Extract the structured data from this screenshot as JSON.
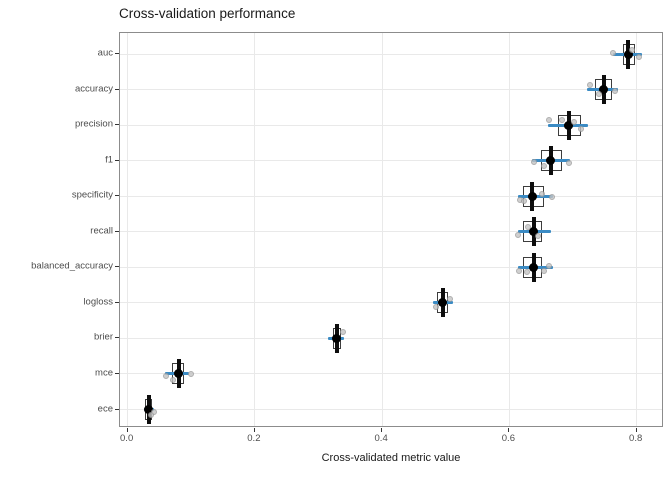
{
  "title": "Cross-validation performance",
  "x_axis_title": "Cross-validated metric value",
  "chart_data": {
    "type": "boxplot",
    "orientation": "horizontal",
    "title": "Cross-validation performance",
    "xlabel": "Cross-validated metric value",
    "ylabel": "",
    "xlim": [
      -0.012,
      0.843
    ],
    "x_ticks": [
      0.0,
      0.2,
      0.4,
      0.6,
      0.8
    ],
    "x_tick_labels": [
      "0.0",
      "0.2",
      "0.4",
      "0.6",
      "0.8"
    ],
    "grid": "major-only",
    "legend": "none",
    "categories": [
      "auc",
      "accuracy",
      "precision",
      "f1",
      "specificity",
      "recall",
      "balanced_accuracy",
      "logloss",
      "brier",
      "mce",
      "ece"
    ],
    "colors": {
      "interval": "#3b8bc4",
      "box_border": "#3d3d3d",
      "box_fill": "#ffffff",
      "median": "#0d0d0d",
      "mean_point": "#000000",
      "fold_point": "#c4c4c4",
      "gridline": "#e9e9e9",
      "panel_border": "#8c8c8c",
      "tick_label": "#4d4d4d"
    },
    "metrics": [
      {
        "name": "auc",
        "box_low": 0.779,
        "box_high": 0.798,
        "median": 0.787,
        "mean": 0.787,
        "interval_low": 0.763,
        "interval_high": 0.809,
        "points": [
          {
            "x": 0.763,
            "dy": -1
          },
          {
            "x": 0.803,
            "dy": 3
          },
          {
            "x": 0.793,
            "dy": -4
          }
        ]
      },
      {
        "name": "accuracy",
        "box_low": 0.735,
        "box_high": 0.762,
        "median": 0.748,
        "mean": 0.748,
        "interval_low": 0.722,
        "interval_high": 0.77,
        "points": [
          {
            "x": 0.727,
            "dy": -5
          },
          {
            "x": 0.766,
            "dy": 1
          },
          {
            "x": 0.741,
            "dy": 4
          }
        ]
      },
      {
        "name": "precision",
        "box_low": 0.677,
        "box_high": 0.712,
        "median": 0.693,
        "mean": 0.693,
        "interval_low": 0.66,
        "interval_high": 0.724,
        "points": [
          {
            "x": 0.663,
            "dy": -5
          },
          {
            "x": 0.702,
            "dy": -3
          },
          {
            "x": 0.712,
            "dy": 4
          },
          {
            "x": 0.683,
            "dy": -5
          }
        ]
      },
      {
        "name": "f1",
        "box_low": 0.649,
        "box_high": 0.683,
        "median": 0.665,
        "mean": 0.665,
        "interval_low": 0.636,
        "interval_high": 0.696,
        "points": [
          {
            "x": 0.638,
            "dy": 1
          },
          {
            "x": 0.694,
            "dy": 2
          },
          {
            "x": 0.655,
            "dy": 5
          }
        ]
      },
      {
        "name": "specificity",
        "box_low": 0.622,
        "box_high": 0.654,
        "median": 0.636,
        "mean": 0.636,
        "interval_low": 0.613,
        "interval_high": 0.668,
        "points": [
          {
            "x": 0.616,
            "dy": 4
          },
          {
            "x": 0.623,
            "dy": 5
          },
          {
            "x": 0.652,
            "dy": -2
          },
          {
            "x": 0.667,
            "dy": 1
          }
        ]
      },
      {
        "name": "recall",
        "box_low": 0.622,
        "box_high": 0.652,
        "median": 0.638,
        "mean": 0.638,
        "interval_low": 0.613,
        "interval_high": 0.665,
        "points": [
          {
            "x": 0.614,
            "dy": 3
          },
          {
            "x": 0.645,
            "dy": 4
          },
          {
            "x": 0.63,
            "dy": -5
          }
        ]
      },
      {
        "name": "balanced_accuracy",
        "box_low": 0.622,
        "box_high": 0.652,
        "median": 0.638,
        "mean": 0.638,
        "interval_low": 0.613,
        "interval_high": 0.668,
        "points": [
          {
            "x": 0.615,
            "dy": 4
          },
          {
            "x": 0.627,
            "dy": 5
          },
          {
            "x": 0.654,
            "dy": 4
          },
          {
            "x": 0.663,
            "dy": -1
          }
        ]
      },
      {
        "name": "logloss",
        "box_low": 0.487,
        "box_high": 0.503,
        "median": 0.495,
        "mean": 0.495,
        "interval_low": 0.48,
        "interval_high": 0.511,
        "points": [
          {
            "x": 0.506,
            "dy": -4
          },
          {
            "x": 0.484,
            "dy": 4
          }
        ]
      },
      {
        "name": "brier",
        "box_low": 0.323,
        "box_high": 0.335,
        "median": 0.329,
        "mean": 0.329,
        "interval_low": 0.315,
        "interval_high": 0.34,
        "points": [
          {
            "x": 0.339,
            "dy": -6
          }
        ]
      },
      {
        "name": "mce",
        "box_low": 0.069,
        "box_high": 0.089,
        "median": 0.08,
        "mean": 0.08,
        "interval_low": 0.058,
        "interval_high": 0.097,
        "points": [
          {
            "x": 0.1,
            "dy": 0
          },
          {
            "x": 0.072,
            "dy": 6
          },
          {
            "x": 0.06,
            "dy": 2
          }
        ]
      },
      {
        "name": "ece",
        "box_low": 0.028,
        "box_high": 0.038,
        "median": 0.033,
        "mean": 0.033,
        "interval_low": 0.025,
        "interval_high": 0.041,
        "points": [
          {
            "x": 0.041,
            "dy": 2
          },
          {
            "x": 0.036,
            "dy": 5
          }
        ]
      }
    ]
  }
}
